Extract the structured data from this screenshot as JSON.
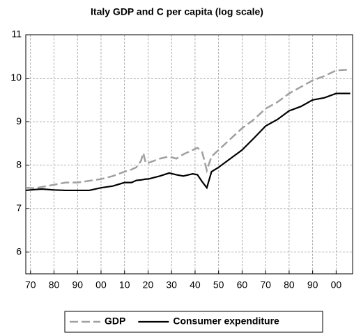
{
  "chart_data": {
    "type": "line",
    "title": "Italy  GDP and C per capita (log scale)",
    "x": [
      1868,
      1872,
      1875,
      1880,
      1885,
      1890,
      1895,
      1900,
      1905,
      1910,
      1913,
      1915,
      1917,
      1918,
      1919,
      1920,
      1925,
      1929,
      1932,
      1935,
      1939,
      1941,
      1943,
      1944,
      1945,
      1947,
      1950,
      1955,
      1960,
      1965,
      1970,
      1975,
      1980,
      1985,
      1990,
      1995,
      2000,
      2006
    ],
    "series": [
      {
        "name": "GDP",
        "color": "#a0a0a0",
        "dashed": true,
        "values": [
          7.48,
          7.47,
          7.5,
          7.55,
          7.6,
          7.6,
          7.64,
          7.68,
          7.75,
          7.85,
          7.9,
          7.95,
          8.1,
          8.28,
          8.05,
          8.05,
          8.15,
          8.2,
          8.15,
          8.25,
          8.35,
          8.4,
          8.3,
          8.1,
          7.88,
          8.2,
          8.35,
          8.6,
          8.85,
          9.05,
          9.3,
          9.45,
          9.65,
          9.8,
          9.95,
          10.05,
          10.18,
          10.2
        ]
      },
      {
        "name": "Consumer expenditure",
        "color": "#000000",
        "dashed": false,
        "values": [
          7.42,
          7.44,
          7.45,
          7.43,
          7.42,
          7.42,
          7.42,
          7.48,
          7.52,
          7.6,
          7.6,
          7.65,
          7.66,
          7.67,
          7.68,
          7.68,
          7.75,
          7.82,
          7.78,
          7.75,
          7.8,
          7.78,
          7.62,
          7.55,
          7.48,
          7.85,
          7.95,
          8.15,
          8.35,
          8.62,
          8.9,
          9.05,
          9.25,
          9.35,
          9.5,
          9.55,
          9.65,
          9.65
        ]
      }
    ],
    "xlim": [
      1868,
      2007
    ],
    "xticks": [
      {
        "value": 1870,
        "label": "70"
      },
      {
        "value": 1880,
        "label": "80"
      },
      {
        "value": 1890,
        "label": "90"
      },
      {
        "value": 1900,
        "label": "00"
      },
      {
        "value": 1910,
        "label": "10"
      },
      {
        "value": 1920,
        "label": "20"
      },
      {
        "value": 1930,
        "label": "30"
      },
      {
        "value": 1940,
        "label": "40"
      },
      {
        "value": 1950,
        "label": "50"
      },
      {
        "value": 1960,
        "label": "60"
      },
      {
        "value": 1970,
        "label": "70"
      },
      {
        "value": 1980,
        "label": "80"
      },
      {
        "value": 1990,
        "label": "90"
      },
      {
        "value": 2000,
        "label": "00"
      }
    ],
    "ylim": [
      5.5,
      11
    ],
    "yticks": [
      6,
      7,
      8,
      9,
      10,
      11
    ],
    "grid": true
  }
}
